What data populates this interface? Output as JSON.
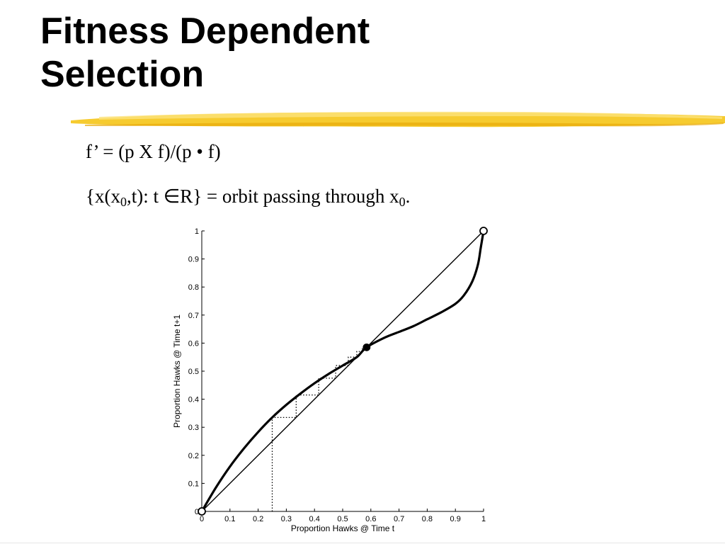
{
  "slide": {
    "title_lines": [
      "Fitness Dependent",
      "Selection"
    ],
    "formula_1": "f’ = (p X f)/(p • f)",
    "formula_2": {
      "open": "{x(x",
      "sub_1": "0",
      "middle": ",t): t ∈R} = orbit passing through x",
      "sub_2": "0",
      "end": "."
    },
    "accent_color": "#f5c518"
  },
  "chart_data": {
    "type": "line",
    "xlabel": "Proportion Hawks @ Time t",
    "ylabel": "Proportion Hawks @ Time t+1",
    "xlim": [
      0,
      1
    ],
    "ylim": [
      0,
      1
    ],
    "xticks": [
      "0",
      "0.1",
      "0.2",
      "0.3",
      "0.4",
      "0.5",
      "0.6",
      "0.7",
      "0.8",
      "0.9",
      "1"
    ],
    "yticks": [
      "0",
      "0.1",
      "0.2",
      "0.3",
      "0.4",
      "0.5",
      "0.6",
      "0.7",
      "0.8",
      "0.9",
      "1"
    ],
    "grid": false,
    "series": [
      {
        "style": "thin-solid",
        "x": [
          0,
          1
        ],
        "y": [
          0,
          1
        ]
      },
      {
        "style": "thick-solid",
        "x": [
          0,
          0.05,
          0.1,
          0.15,
          0.2,
          0.25,
          0.3,
          0.35,
          0.4,
          0.45,
          0.5,
          0.55,
          0.585,
          0.65,
          0.7,
          0.75,
          0.8,
          0.85,
          0.9,
          0.93,
          0.96,
          0.98,
          0.99,
          1
        ],
        "y": [
          0,
          0.085,
          0.16,
          0.225,
          0.283,
          0.335,
          0.38,
          0.42,
          0.457,
          0.49,
          0.52,
          0.55,
          0.585,
          0.62,
          0.64,
          0.66,
          0.685,
          0.71,
          0.74,
          0.77,
          0.82,
          0.88,
          0.94,
          1
        ]
      },
      {
        "style": "dotted-cobweb",
        "x": [
          0.25,
          0.25,
          0.335,
          0.335,
          0.415,
          0.415,
          0.475,
          0.475,
          0.52,
          0.52,
          0.55,
          0.55,
          0.57,
          0.57,
          0.585
        ],
        "y": [
          0,
          0.335,
          0.335,
          0.415,
          0.415,
          0.475,
          0.475,
          0.52,
          0.52,
          0.55,
          0.55,
          0.57,
          0.57,
          0.58,
          0.585
        ]
      }
    ],
    "points": [
      {
        "x": 0,
        "y": 0,
        "marker": "open-circle"
      },
      {
        "x": 1,
        "y": 1,
        "marker": "open-circle"
      },
      {
        "x": 0.585,
        "y": 0.585,
        "marker": "filled-circle"
      }
    ]
  }
}
